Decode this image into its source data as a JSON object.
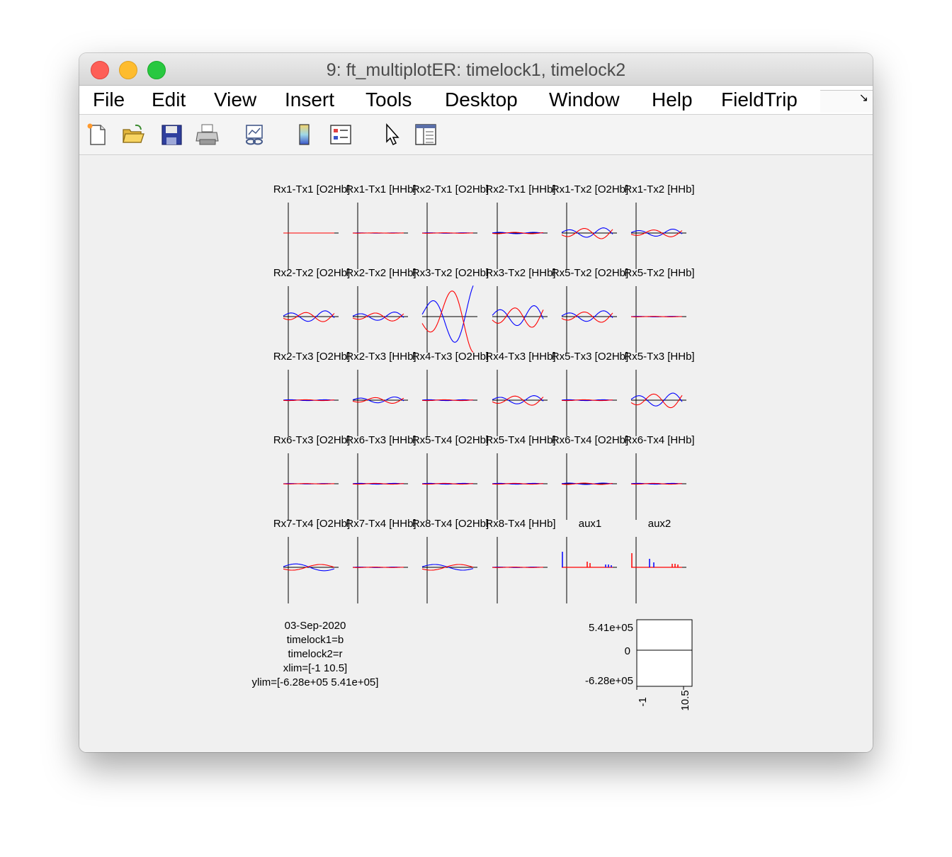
{
  "window": {
    "title": "9: ft_multiplotER: timelock1, timelock2"
  },
  "menubar": {
    "items": [
      "File",
      "Edit",
      "View",
      "Insert",
      "Tools",
      "Desktop",
      "Window",
      "Help",
      "FieldTrip"
    ],
    "more_glyph": "↘"
  },
  "toolbar": {
    "icons": [
      "new-figure-icon",
      "open-file-icon",
      "save-icon",
      "print-icon",
      "link-plot-icon",
      "colorbar-icon",
      "legend-icon",
      "pointer-icon",
      "property-editor-icon"
    ]
  },
  "channels": [
    {
      "label": "Rx1-Tx1 [O2Hb]"
    },
    {
      "label": "Rx1-Tx1 [HHb]"
    },
    {
      "label": "Rx2-Tx1 [O2Hb]"
    },
    {
      "label": "Rx2-Tx1 [HHb]"
    },
    {
      "label": "Rx1-Tx2 [O2Hb]"
    },
    {
      "label": "Rx1-Tx2 [HHb]"
    },
    {
      "label": "Rx2-Tx2 [O2Hb]"
    },
    {
      "label": "Rx2-Tx2 [HHb]"
    },
    {
      "label": "Rx3-Tx2 [O2Hb]"
    },
    {
      "label": "Rx3-Tx2 [HHb]"
    },
    {
      "label": "Rx5-Tx2 [O2Hb]"
    },
    {
      "label": "Rx5-Tx2 [HHb]"
    },
    {
      "label": "Rx2-Tx3 [O2Hb]"
    },
    {
      "label": "Rx2-Tx3 [HHb]"
    },
    {
      "label": "Rx4-Tx3 [O2Hb]"
    },
    {
      "label": "Rx4-Tx3 [HHb]"
    },
    {
      "label": "Rx5-Tx3 [O2Hb]"
    },
    {
      "label": "Rx5-Tx3 [HHb]"
    },
    {
      "label": "Rx6-Tx3 [O2Hb]"
    },
    {
      "label": "Rx6-Tx3 [HHb]"
    },
    {
      "label": "Rx5-Tx4 [O2Hb]"
    },
    {
      "label": "Rx5-Tx4 [HHb]"
    },
    {
      "label": "Rx6-Tx4 [O2Hb]"
    },
    {
      "label": "Rx6-Tx4 [HHb]"
    },
    {
      "label": "Rx7-Tx4 [O2Hb]"
    },
    {
      "label": "Rx7-Tx4 [HHb]"
    },
    {
      "label": "Rx8-Tx4 [O2Hb]"
    },
    {
      "label": "Rx8-Tx4 [HHb]"
    },
    {
      "label": "aux1"
    },
    {
      "label": "aux2"
    }
  ],
  "info_text": [
    "03-Sep-2020",
    "timelock1=b",
    "timelock2=r",
    "xlim=[-1 10.5]",
    "ylim=[-6.28e+05 5.41e+05]"
  ],
  "scale": {
    "y_top": "5.41e+05",
    "y_zero": "0",
    "y_bottom": "-6.28e+05",
    "x_left": "-1",
    "x_right": "10.5"
  },
  "colors": {
    "timelock1": "#0000ff",
    "timelock2": "#ff0000",
    "axis": "#000000"
  },
  "chart_data": {
    "type": "line",
    "series": [
      {
        "name": "timelock1"
      },
      {
        "name": "timelock2"
      }
    ],
    "xlim": [
      -1,
      10.5
    ],
    "ylim": [
      -628000,
      541000
    ],
    "grid": false
  }
}
